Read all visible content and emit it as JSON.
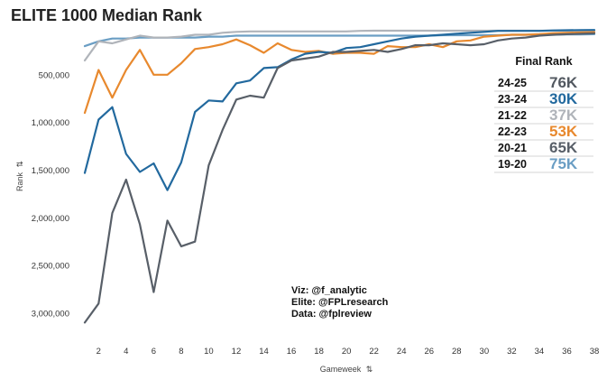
{
  "chart_data": {
    "type": "line",
    "title": "ELITE 1000 Median Rank",
    "xlabel": "Gameweek",
    "ylabel": "Rank",
    "axis_sort_glyph": "⇅",
    "x": [
      1,
      2,
      3,
      4,
      5,
      6,
      7,
      8,
      9,
      10,
      11,
      12,
      13,
      14,
      15,
      16,
      17,
      18,
      19,
      20,
      21,
      22,
      23,
      24,
      25,
      26,
      27,
      28,
      29,
      30,
      31,
      32,
      33,
      34,
      35,
      36,
      37,
      38
    ],
    "x_ticks": [
      2,
      4,
      6,
      8,
      10,
      12,
      14,
      16,
      18,
      20,
      22,
      24,
      26,
      28,
      30,
      32,
      34,
      36,
      38
    ],
    "x_tick_labels": [
      "2",
      "4",
      "6",
      "8",
      "10",
      "12",
      "14",
      "16",
      "18",
      "20",
      "22",
      "24",
      "26",
      "28",
      "30",
      "32",
      "34",
      "36",
      "38"
    ],
    "y_ticks": [
      500000,
      1000000,
      1500000,
      2000000,
      2500000,
      3000000
    ],
    "y_tick_labels": [
      "500,000",
      "1,000,000",
      "1,500,000",
      "2,000,000",
      "2,500,000",
      "3,000,000"
    ],
    "ylim": [
      3200000,
      0
    ],
    "y_inverted": true,
    "grid": false,
    "series": [
      {
        "name": "19-20",
        "color": "#6a9ec4",
        "values": [
          200000,
          150000,
          120000,
          120000,
          110000,
          110000,
          110000,
          110000,
          110000,
          100000,
          100000,
          90000,
          90000,
          90000,
          90000,
          90000,
          90000,
          90000,
          90000,
          90000,
          90000,
          90000,
          90000,
          90000,
          90000,
          90000,
          85000,
          85000,
          85000,
          85000,
          85000,
          80000,
          80000,
          80000,
          80000,
          78000,
          77000,
          75000
        ]
      },
      {
        "name": "21-22",
        "color": "#b0b4ba",
        "values": [
          350000,
          150000,
          170000,
          130000,
          90000,
          110000,
          110000,
          100000,
          80000,
          80000,
          60000,
          50000,
          45000,
          45000,
          45000,
          45000,
          45000,
          45000,
          45000,
          45000,
          40000,
          38000,
          38000,
          38000,
          38000,
          38000,
          38000,
          38000,
          38000,
          38000,
          38000,
          38000,
          38000,
          38000,
          38000,
          38000,
          37000,
          37000
        ]
      },
      {
        "name": "22-23",
        "color": "#e8892e",
        "values": [
          900000,
          450000,
          740000,
          450000,
          240000,
          500000,
          500000,
          380000,
          230000,
          210000,
          180000,
          130000,
          190000,
          270000,
          170000,
          240000,
          260000,
          250000,
          280000,
          270000,
          270000,
          280000,
          200000,
          210000,
          210000,
          180000,
          210000,
          150000,
          140000,
          100000,
          90000,
          80000,
          80000,
          75000,
          65000,
          60000,
          57000,
          53000
        ]
      },
      {
        "name": "23-24",
        "color": "#22699e",
        "values": [
          1530000,
          970000,
          840000,
          1330000,
          1520000,
          1430000,
          1710000,
          1420000,
          890000,
          770000,
          780000,
          590000,
          560000,
          430000,
          420000,
          340000,
          280000,
          260000,
          270000,
          220000,
          210000,
          180000,
          150000,
          120000,
          100000,
          90000,
          80000,
          70000,
          60000,
          50000,
          40000,
          40000,
          40000,
          40000,
          35000,
          33000,
          31000,
          30000
        ]
      },
      {
        "name": "20-21",
        "color": "#585f68",
        "values": [
          3100000,
          2900000,
          1950000,
          1600000,
          2070000,
          2780000,
          2030000,
          2300000,
          2250000,
          1450000,
          1080000,
          760000,
          720000,
          740000,
          430000,
          350000,
          330000,
          310000,
          260000,
          260000,
          250000,
          240000,
          260000,
          230000,
          190000,
          190000,
          170000,
          180000,
          190000,
          180000,
          140000,
          120000,
          110000,
          90000,
          80000,
          75000,
          70000,
          65000
        ]
      }
    ],
    "legend": {
      "title": "Final Rank",
      "placement": "right",
      "entries": [
        {
          "season": "24-25",
          "value": "76K",
          "color": "#525860"
        },
        {
          "season": "23-24",
          "value": "30K",
          "color": "#22699e"
        },
        {
          "season": "21-22",
          "value": "37K",
          "color": "#b0b4ba"
        },
        {
          "season": "22-23",
          "value": "53K",
          "color": "#e8892e"
        },
        {
          "season": "20-21",
          "value": "65K",
          "color": "#585f68"
        },
        {
          "season": "19-20",
          "value": "75K",
          "color": "#6a9ec4"
        }
      ]
    },
    "annotations": [
      "Viz: @f_analytic",
      "Elite: @FPLresearch",
      "Data: @fplreview"
    ]
  }
}
